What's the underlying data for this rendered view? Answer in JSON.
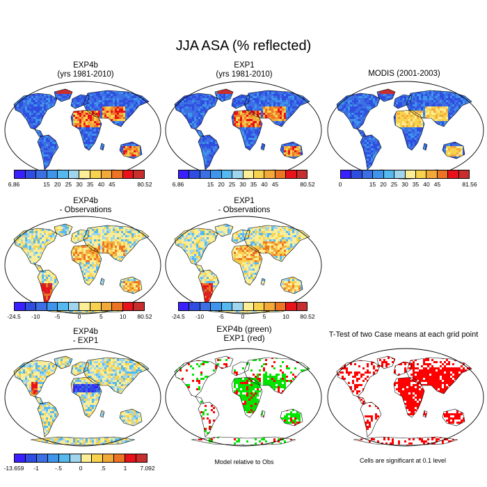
{
  "title": "JJA ASA (% reflected)",
  "panels": [
    {
      "id": "exp4b",
      "title": [
        "EXP4b",
        "(yrs 1981-2010)"
      ],
      "scheme": "abs",
      "pattern": "model",
      "colorbar": {
        "labels": [
          "6.86",
          "15",
          "20",
          "25",
          "30",
          "35",
          "40",
          "45",
          "80.52"
        ]
      }
    },
    {
      "id": "exp1",
      "title": [
        "EXP1",
        "(yrs 1981-2010)"
      ],
      "scheme": "abs",
      "pattern": "model",
      "colorbar": {
        "labels": [
          "6.86",
          "15",
          "20",
          "25",
          "30",
          "35",
          "40",
          "45",
          "80.52"
        ]
      }
    },
    {
      "id": "modis",
      "title": [
        "MODIS (2001-2003)"
      ],
      "scheme": "abs",
      "pattern": "obs",
      "colorbar": {
        "labels": [
          "0",
          "15",
          "20",
          "25",
          "30",
          "35",
          "40",
          "45",
          "81.56"
        ]
      }
    },
    {
      "id": "exp4b-obs",
      "title": [
        "EXP4b",
        "- Observations"
      ],
      "scheme": "diff",
      "pattern": "diff",
      "colorbar": {
        "labels": [
          "-24.5",
          "-10",
          "-5",
          "0",
          "5",
          "10",
          "80.52"
        ]
      }
    },
    {
      "id": "exp1-obs",
      "title": [
        "EXP1",
        "- Observations"
      ],
      "scheme": "diff",
      "pattern": "diff",
      "colorbar": {
        "labels": [
          "-24.5",
          "-10",
          "-5",
          "0",
          "5",
          "10",
          "80.52"
        ]
      }
    },
    {
      "id": "exp4b-exp1",
      "title": [
        "EXP4b",
        "- EXP1"
      ],
      "scheme": "diff",
      "pattern": "diff2",
      "colorbar": {
        "labels": [
          "-13.659",
          "-1",
          "-.5",
          "0",
          ".5",
          "1",
          "7.092"
        ]
      }
    },
    {
      "id": "green-red",
      "title": [
        "EXP4b (green)",
        "EXP1 (red)"
      ],
      "scheme": "gr",
      "pattern": "gr",
      "note": "Model relative to Obs"
    },
    {
      "id": "ttest",
      "title": [
        "T-Test of two Case means at each grid point"
      ],
      "scheme": "sig",
      "pattern": "sig",
      "note": "Cells are significant at 0.1 level"
    }
  ],
  "colors": {
    "abs": [
      "#3a1fff",
      "#2f4de0",
      "#3b6fe3",
      "#3f95ec",
      "#55b8ee",
      "#9fd6ee",
      "#fbee97",
      "#f8d24e",
      "#f3a93a",
      "#ec7424",
      "#e9121a",
      "#c82e2e"
    ],
    "diff": [
      "#3a1fff",
      "#2f4de0",
      "#3b6fe3",
      "#3f95ec",
      "#55b8ee",
      "#9fd6ee",
      "#fbee97",
      "#f8d24e",
      "#f3a93a",
      "#ec7424",
      "#e9121a",
      "#c82e2e"
    ],
    "green": "#00e400",
    "red": "#ff0000"
  }
}
